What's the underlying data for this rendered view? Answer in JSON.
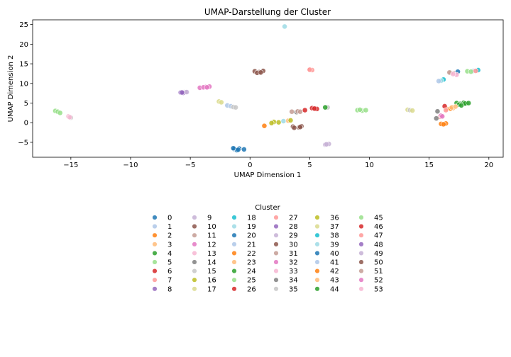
{
  "chart_data": {
    "type": "scatter",
    "title": "UMAP-Darstellung der Cluster",
    "xlabel": "UMAP Dimension 1",
    "ylabel": "UMAP Dimension 2",
    "xlim": [
      -18.2,
      21.2
    ],
    "ylim": [
      -8.8,
      26.2
    ],
    "xticks": [
      -15,
      -10,
      -5,
      0,
      5,
      10,
      15,
      20
    ],
    "yticks": [
      -5,
      0,
      5,
      10,
      15,
      20,
      25
    ],
    "grid": false,
    "legend": {
      "title": "Cluster",
      "placement": "below-chart",
      "columns": 6
    },
    "series": [
      {
        "name": "0",
        "color": "#1f77b4",
        "points": [
          [
            -1.3,
            -6.7
          ],
          [
            -0.9,
            -6.6
          ],
          [
            -0.5,
            -6.8
          ],
          [
            -1.1,
            -7.0
          ],
          [
            -1.4,
            -6.5
          ]
        ]
      },
      {
        "name": "1",
        "color": "#aec7e8",
        "points": [
          [
            -1.9,
            4.4
          ],
          [
            -1.6,
            4.2
          ]
        ]
      },
      {
        "name": "2",
        "color": "#ff7f0e",
        "points": [
          [
            1.2,
            -0.8
          ],
          [
            16.0,
            -0.3
          ],
          [
            16.4,
            -0.2
          ]
        ]
      },
      {
        "name": "3",
        "color": "#ffbb78",
        "points": [
          [
            16.5,
            3.5
          ],
          [
            17.0,
            3.7
          ]
        ]
      },
      {
        "name": "4",
        "color": "#2ca02c",
        "points": [
          [
            17.3,
            5.0
          ],
          [
            17.6,
            4.8
          ],
          [
            17.9,
            5.1
          ],
          [
            18.1,
            4.9
          ],
          [
            17.5,
            4.6
          ]
        ]
      },
      {
        "name": "5",
        "color": "#98df8a",
        "points": [
          [
            -16.3,
            3.0
          ],
          [
            -16.1,
            2.8
          ],
          [
            -15.9,
            2.5
          ],
          [
            9.0,
            3.2
          ],
          [
            9.4,
            3.1
          ]
        ]
      },
      {
        "name": "6",
        "color": "#d62728",
        "points": [
          [
            4.6,
            3.2
          ],
          [
            16.3,
            4.2
          ]
        ]
      },
      {
        "name": "7",
        "color": "#ff9896",
        "points": [
          [
            5.0,
            13.5
          ],
          [
            5.2,
            13.4
          ],
          [
            15.9,
            1.5
          ]
        ]
      },
      {
        "name": "8",
        "color": "#9467bd",
        "points": [
          [
            -5.8,
            7.7
          ],
          [
            -5.5,
            7.8
          ]
        ]
      },
      {
        "name": "9",
        "color": "#c5b0d5",
        "points": [
          [
            -5.4,
            7.8
          ],
          [
            6.3,
            -5.6
          ],
          [
            6.6,
            -5.4
          ]
        ]
      },
      {
        "name": "10",
        "color": "#8c564b",
        "points": [
          [
            0.4,
            13.1
          ],
          [
            0.8,
            12.9
          ],
          [
            1.1,
            13.2
          ],
          [
            0.6,
            12.7
          ],
          [
            3.6,
            -1.0
          ],
          [
            4.1,
            -1.2
          ]
        ]
      },
      {
        "name": "11",
        "color": "#c49c94",
        "points": [
          [
            3.5,
            2.8
          ],
          [
            16.8,
            12.7
          ],
          [
            17.1,
            12.6
          ]
        ]
      },
      {
        "name": "12",
        "color": "#e377c2",
        "points": [
          [
            -4.2,
            8.9
          ],
          [
            -3.7,
            9.1
          ],
          [
            -3.4,
            9.2
          ],
          [
            16.0,
            1.8
          ]
        ]
      },
      {
        "name": "13",
        "color": "#f7b6d2",
        "points": [
          [
            -15.2,
            1.6
          ],
          [
            17.2,
            12.3
          ]
        ]
      },
      {
        "name": "14",
        "color": "#7f7f7f",
        "points": [
          [
            3.9,
            2.7
          ],
          [
            15.7,
            2.9
          ]
        ]
      },
      {
        "name": "15",
        "color": "#c7c7c7",
        "points": [
          [
            -1.4,
            4.0
          ],
          [
            -15.0,
            1.3
          ],
          [
            6.5,
            3.9
          ]
        ]
      },
      {
        "name": "16",
        "color": "#bcbd22",
        "points": [
          [
            2.0,
            0.2
          ],
          [
            1.8,
            -0.1
          ]
        ]
      },
      {
        "name": "17",
        "color": "#dbdb8d",
        "points": [
          [
            -2.6,
            5.4
          ],
          [
            13.2,
            3.3
          ]
        ]
      },
      {
        "name": "18",
        "color": "#17becf",
        "points": [
          [
            16.2,
            11.0
          ]
        ]
      },
      {
        "name": "19",
        "color": "#9edae5",
        "points": [
          [
            2.9,
            24.5
          ],
          [
            16.0,
            10.7
          ]
        ]
      },
      {
        "name": "20",
        "color": "#1f77b4",
        "points": [
          [
            17.4,
            13.0
          ]
        ]
      },
      {
        "name": "21",
        "color": "#aec7e8",
        "points": [
          [
            15.8,
            10.6
          ],
          [
            19.0,
            13.3
          ]
        ]
      },
      {
        "name": "22",
        "color": "#ff7f0e",
        "points": [
          [
            16.8,
            3.6
          ]
        ]
      },
      {
        "name": "23",
        "color": "#ffbb78",
        "points": [
          [
            3.2,
            0.5
          ],
          [
            16.9,
            3.9
          ]
        ]
      },
      {
        "name": "24",
        "color": "#2ca02c",
        "points": [
          [
            6.3,
            3.9
          ],
          [
            18.0,
            4.9
          ]
        ]
      },
      {
        "name": "25",
        "color": "#98df8a",
        "points": [
          [
            18.2,
            13.1
          ],
          [
            9.7,
            3.2
          ]
        ]
      },
      {
        "name": "26",
        "color": "#d62728",
        "points": [
          [
            5.2,
            3.7
          ],
          [
            5.6,
            3.5
          ]
        ]
      },
      {
        "name": "27",
        "color": "#ff9896",
        "points": [
          [
            16.4,
            3.2
          ],
          [
            5.0,
            13.5
          ]
        ]
      },
      {
        "name": "28",
        "color": "#9467bd",
        "points": [
          [
            -5.6,
            7.6
          ]
        ]
      },
      {
        "name": "29",
        "color": "#c5b0d5",
        "points": [
          [
            -5.3,
            7.8
          ]
        ]
      },
      {
        "name": "30",
        "color": "#8c564b",
        "points": [
          [
            3.7,
            -1.3
          ],
          [
            4.3,
            -0.9
          ]
        ]
      },
      {
        "name": "31",
        "color": "#c49c94",
        "points": [
          [
            16.7,
            12.8
          ],
          [
            4.0,
            2.9
          ]
        ]
      },
      {
        "name": "32",
        "color": "#e377c2",
        "points": [
          [
            -3.9,
            9.0
          ]
        ]
      },
      {
        "name": "33",
        "color": "#f7b6d2",
        "points": [
          [
            17.3,
            12.2
          ]
        ]
      },
      {
        "name": "34",
        "color": "#7f7f7f",
        "points": [
          [
            15.6,
            1.1
          ]
        ]
      },
      {
        "name": "35",
        "color": "#c7c7c7",
        "points": [
          [
            -1.2,
            3.9
          ],
          [
            13.4,
            3.2
          ]
        ]
      },
      {
        "name": "36",
        "color": "#bcbd22",
        "points": [
          [
            2.4,
            0.1
          ],
          [
            3.4,
            0.6
          ]
        ]
      },
      {
        "name": "37",
        "color": "#dbdb8d",
        "points": [
          [
            -2.4,
            5.2
          ],
          [
            13.6,
            3.1
          ]
        ]
      },
      {
        "name": "38",
        "color": "#17becf",
        "points": [
          [
            19.1,
            13.4
          ]
        ]
      },
      {
        "name": "39",
        "color": "#9edae5",
        "points": [
          [
            2.8,
            0.4
          ]
        ]
      },
      {
        "name": "40",
        "color": "#1f77b4",
        "points": [
          [
            -1.0,
            -6.9
          ]
        ]
      },
      {
        "name": "41",
        "color": "#aec7e8",
        "points": [
          [
            18.7,
            13.2
          ]
        ]
      },
      {
        "name": "42",
        "color": "#ff7f0e",
        "points": [
          [
            16.2,
            -0.4
          ]
        ]
      },
      {
        "name": "43",
        "color": "#ffbb78",
        "points": [
          [
            17.2,
            4.1
          ]
        ]
      },
      {
        "name": "44",
        "color": "#2ca02c",
        "points": [
          [
            17.7,
            4.4
          ],
          [
            18.3,
            5.0
          ]
        ]
      },
      {
        "name": "45",
        "color": "#98df8a",
        "points": [
          [
            18.5,
            13.0
          ],
          [
            9.2,
            3.3
          ]
        ]
      },
      {
        "name": "46",
        "color": "#d62728",
        "points": [
          [
            5.4,
            3.6
          ]
        ]
      },
      {
        "name": "47",
        "color": "#ff9896",
        "points": [
          [
            18.9,
            13.2
          ]
        ]
      },
      {
        "name": "48",
        "color": "#9467bd",
        "points": [
          [
            -5.7,
            7.7
          ]
        ]
      },
      {
        "name": "49",
        "color": "#c5b0d5",
        "points": [
          [
            6.4,
            -5.5
          ]
        ]
      },
      {
        "name": "50",
        "color": "#8c564b",
        "points": [
          [
            0.9,
            12.8
          ],
          [
            4.2,
            -1.1
          ]
        ]
      },
      {
        "name": "51",
        "color": "#c49c94",
        "points": [
          [
            4.2,
            2.8
          ]
        ]
      },
      {
        "name": "52",
        "color": "#e377c2",
        "points": [
          [
            -3.6,
            9.0
          ],
          [
            16.1,
            1.6
          ]
        ]
      },
      {
        "name": "53",
        "color": "#f7b6d2",
        "points": [
          [
            17.0,
            12.4
          ],
          [
            -15.1,
            1.4
          ]
        ]
      }
    ]
  }
}
